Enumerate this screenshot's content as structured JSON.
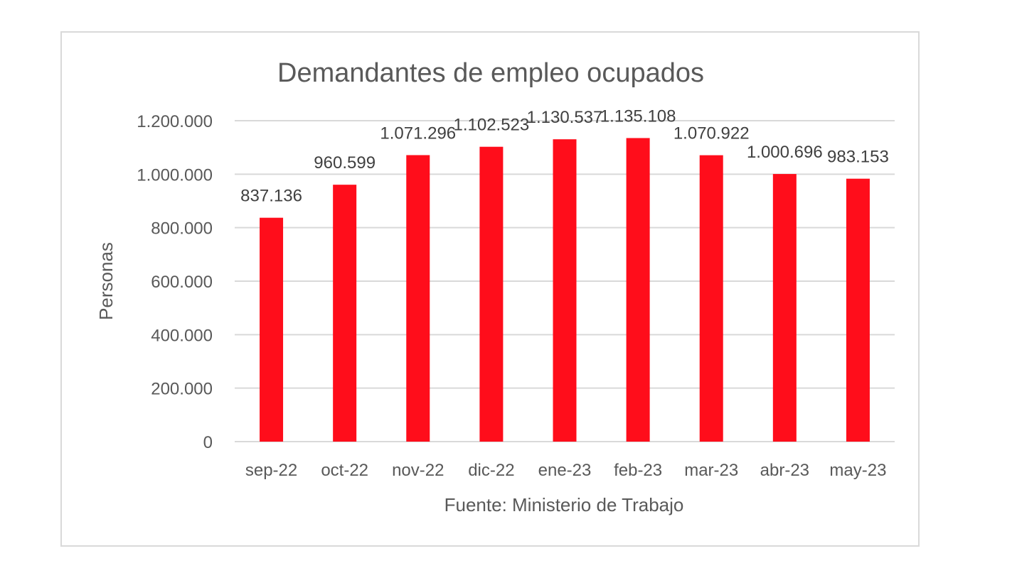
{
  "chart_data": {
    "type": "bar",
    "title": "Demandantes de empleo ocupados",
    "xlabel": "Fuente: Ministerio de Trabajo",
    "ylabel": "Personas",
    "categories": [
      "sep-22",
      "oct-22",
      "nov-22",
      "dic-22",
      "ene-23",
      "feb-23",
      "mar-23",
      "abr-23",
      "may-23"
    ],
    "values": [
      837136,
      960599,
      1071296,
      1102523,
      1130537,
      1135108,
      1070922,
      1000696,
      983153
    ],
    "value_labels": [
      "837.136",
      "960.599",
      "1.071.296",
      "1.102.523",
      "1.130.537",
      "1.135.108",
      "1.070.922",
      "1.000.696",
      "983.153"
    ],
    "ylim": [
      0,
      1200000
    ],
    "yticks": [
      0,
      200000,
      400000,
      600000,
      800000,
      1000000,
      1200000
    ],
    "ytick_labels": [
      "0",
      "200.000",
      "400.000",
      "600.000",
      "800.000",
      "1.000.000",
      "1.200.000"
    ],
    "grid": true,
    "bar_color": "#ff0d1b",
    "legend": "none"
  }
}
